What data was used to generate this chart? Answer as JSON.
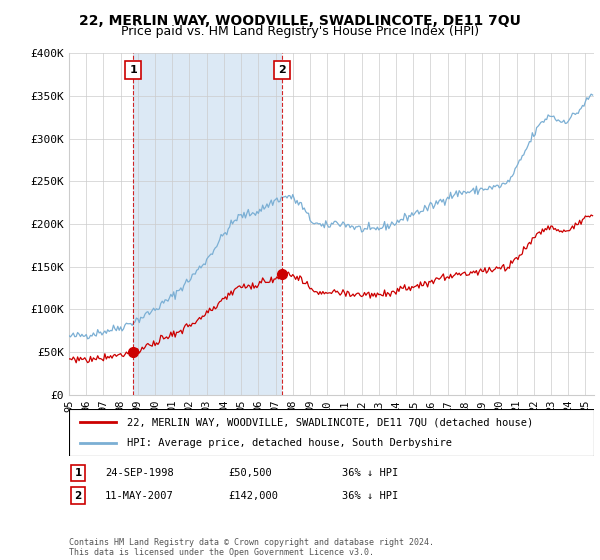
{
  "title": "22, MERLIN WAY, WOODVILLE, SWADLINCOTE, DE11 7QU",
  "subtitle": "Price paid vs. HM Land Registry's House Price Index (HPI)",
  "legend_line1": "22, MERLIN WAY, WOODVILLE, SWADLINCOTE, DE11 7QU (detached house)",
  "legend_line2": "HPI: Average price, detached house, South Derbyshire",
  "footnote": "Contains HM Land Registry data © Crown copyright and database right 2024.\nThis data is licensed under the Open Government Licence v3.0.",
  "sale1_date": "24-SEP-1998",
  "sale1_price": "£50,500",
  "sale1_hpi": "36% ↓ HPI",
  "sale2_date": "11-MAY-2007",
  "sale2_price": "£142,000",
  "sale2_hpi": "36% ↓ HPI",
  "sale1_x": 1998.73,
  "sale1_y": 50500,
  "sale2_x": 2007.36,
  "sale2_y": 142000,
  "vline1_x": 1998.73,
  "vline2_x": 2007.36,
  "ylim": [
    0,
    400000
  ],
  "xlim_left": 1995.0,
  "xlim_right": 2025.5,
  "property_color": "#cc0000",
  "hpi_color": "#7bafd4",
  "shade_color": "#dce9f5",
  "vline_color": "#cc0000",
  "background_color": "#ffffff",
  "grid_color": "#cccccc",
  "title_fontsize": 10,
  "subtitle_fontsize": 9,
  "ytick_labels": [
    "£0",
    "£50K",
    "£100K",
    "£150K",
    "£200K",
    "£250K",
    "£300K",
    "£350K",
    "£400K"
  ],
  "ytick_values": [
    0,
    50000,
    100000,
    150000,
    200000,
    250000,
    300000,
    350000,
    400000
  ],
  "xtick_years": [
    1995,
    1996,
    1997,
    1998,
    1999,
    2000,
    2001,
    2002,
    2003,
    2004,
    2005,
    2006,
    2007,
    2008,
    2009,
    2010,
    2011,
    2012,
    2013,
    2014,
    2015,
    2016,
    2017,
    2018,
    2019,
    2020,
    2021,
    2022,
    2023,
    2024,
    2025
  ],
  "xtick_labels": [
    "95",
    "96",
    "97",
    "98",
    "99",
    "00",
    "01",
    "02",
    "03",
    "04",
    "05",
    "06",
    "07",
    "08",
    "09",
    "10",
    "11",
    "12",
    "13",
    "14",
    "15",
    "16",
    "17",
    "18",
    "19",
    "20",
    "21",
    "22",
    "23",
    "24",
    "25"
  ]
}
